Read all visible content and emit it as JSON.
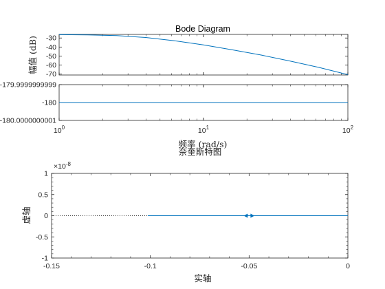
{
  "colors": {
    "line": "#0072bd",
    "axis": "#262626",
    "background": "#ffffff"
  },
  "chart_data": [
    {
      "type": "line",
      "title": "Bode Diagram",
      "xlabel": "频率  (rad/s)",
      "x_scale": "log",
      "xlim": [
        1,
        100
      ],
      "x_ticks": [
        1,
        10,
        100
      ],
      "x_tick_labels": [
        {
          "base": "10",
          "exp": "0"
        },
        {
          "base": "10",
          "exp": "1"
        },
        {
          "base": "10",
          "exp": "2"
        }
      ],
      "panels": [
        {
          "name": "magnitude",
          "ylabel": "幅值 (dB)",
          "ylim": [
            -71,
            -26
          ],
          "y_ticks": [
            -30,
            -40,
            -50,
            -60,
            -70
          ],
          "y_tick_labels": [
            "-30",
            "-40",
            "-50",
            "-60",
            "-70"
          ],
          "series": [
            {
              "x": [
                1,
                1.58,
                2.51,
                3.98,
                6.31,
                10,
                15.8,
                25.1,
                39.8,
                63.1,
                100
              ],
              "y": [
                -26.3,
                -26.6,
                -27.4,
                -29.4,
                -33.0,
                -37.6,
                -43.1,
                -48.9,
                -55.5,
                -62.6,
                -70.6
              ]
            }
          ]
        },
        {
          "name": "phase",
          "ylabel": "",
          "ylim": [
            -180.0000000001,
            -179.9999999999
          ],
          "y_ticks": [
            -179.9999999999,
            -180,
            -180.0000000001
          ],
          "y_tick_labels": [
            "-179.9999999999",
            "-180",
            "-180.0000000001"
          ],
          "series": [
            {
              "x": [
                1,
                100
              ],
              "y": [
                -180,
                -180
              ]
            }
          ]
        }
      ]
    },
    {
      "type": "line",
      "title": "奈奎斯特图",
      "xlabel": "实轴",
      "ylabel": "虚轴",
      "xlim": [
        -0.15,
        0
      ],
      "ylim": [
        -1,
        1
      ],
      "y_multiplier": "×10",
      "y_multiplier_exp": "-8",
      "x_ticks": [
        -0.15,
        -0.1,
        -0.05,
        0
      ],
      "x_tick_labels": [
        "-0.15",
        "-0.1",
        "-0.05",
        "0"
      ],
      "y_ticks": [
        1,
        0.5,
        0,
        -0.5,
        -1
      ],
      "y_tick_labels": [
        "1",
        "0.5",
        "0",
        "-0.5",
        "-1"
      ],
      "series": [
        {
          "style": "solid",
          "x": [
            -0.1013,
            0
          ],
          "y": [
            0,
            0
          ]
        },
        {
          "style": "dotted",
          "x": [
            -0.15,
            -0.1013
          ],
          "y": [
            0,
            0
          ]
        }
      ],
      "arrows": [
        {
          "x": -0.0515,
          "y": 0,
          "direction": "left"
        },
        {
          "x": -0.0485,
          "y": 0,
          "direction": "right"
        }
      ]
    }
  ]
}
